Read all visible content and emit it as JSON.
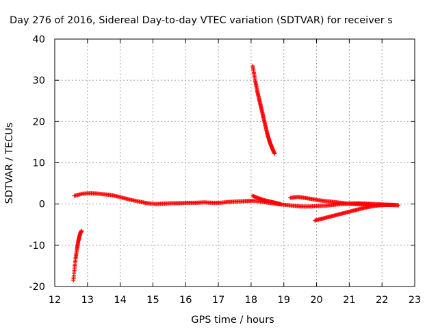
{
  "chart_data": {
    "type": "scatter",
    "title": "Day 276 of 2016, Sidereal Day-to-day VTEC variation (SDTVAR) for receiver s",
    "xlabel": "GPS time / hours",
    "ylabel": "SDTVAR / TECUs",
    "xlim": [
      12,
      23
    ],
    "ylim": [
      -20,
      40
    ],
    "xticks": [
      12,
      13,
      14,
      15,
      16,
      17,
      18,
      19,
      20,
      21,
      22,
      23
    ],
    "yticks": [
      -20,
      -10,
      0,
      10,
      20,
      30,
      40
    ],
    "grid": true,
    "marker": "plus",
    "marker_color": "#ff0000",
    "series": [
      {
        "segments": [
          {
            "x_start": 12.57,
            "x_end": 12.82,
            "y": [
              -18.5,
              -15.5,
              -13.0,
              -11.0,
              -9.3,
              -8.0,
              -7.0,
              -6.5
            ]
          },
          {
            "x_start": 12.6,
            "x_end": 22.5,
            "y": [
              2.0,
              2.5,
              2.6,
              2.5,
              2.3,
              2.0,
              1.5,
              1.0,
              0.6,
              0.2,
              0.0,
              0.1,
              0.2,
              0.2,
              0.3,
              0.3,
              0.4,
              0.3,
              0.3,
              0.5,
              0.6,
              0.7,
              0.8,
              0.6,
              0.3,
              0.0,
              -0.2,
              -0.4,
              -0.6,
              -0.6,
              -0.5,
              -0.4,
              -0.2,
              0.0,
              0.1,
              0.2,
              0.1,
              0.0,
              -0.1,
              -0.2,
              -0.3
            ]
          },
          {
            "x_start": 18.05,
            "x_end": 18.72,
            "y": [
              33.5,
              30.0,
              27.0,
              24.5,
              22.0,
              19.5,
              17.0,
              15.0,
              13.5,
              12.2
            ]
          },
          {
            "x_start": 18.05,
            "x_end": 18.9,
            "y": [
              2.0,
              1.6,
              1.3,
              1.0,
              0.8,
              0.6,
              0.4,
              0.2,
              0.0
            ]
          },
          {
            "x_start": 19.2,
            "x_end": 22.5,
            "y": [
              1.5,
              1.7,
              1.5,
              1.2,
              0.9,
              0.7,
              0.5,
              0.3,
              0.1,
              0.0,
              -0.1,
              -0.1,
              -0.2,
              -0.2,
              -0.2,
              -0.3
            ]
          },
          {
            "x_start": 19.95,
            "x_end": 22.4,
            "y": [
              -4.0,
              -3.5,
              -3.0,
              -2.5,
              -2.0,
              -1.5,
              -1.0,
              -0.6,
              -0.3,
              -0.2,
              -0.2
            ]
          }
        ]
      }
    ]
  }
}
